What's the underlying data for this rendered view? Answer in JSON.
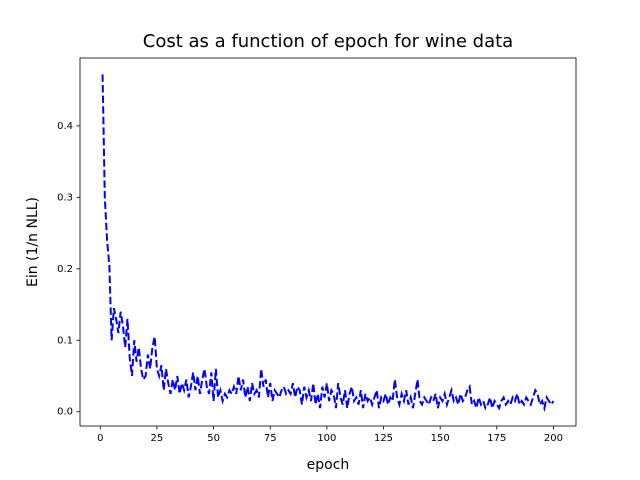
{
  "chart_data": {
    "type": "line",
    "title": "Cost as a function of epoch for wine data",
    "xlabel": "epoch",
    "ylabel": "Ein (1/n NLL)",
    "color": "#0000ff",
    "line_style": "dashed",
    "xlim": [
      -8.95,
      209.95
    ],
    "ylim": [
      -0.02,
      0.495
    ],
    "xticks": [
      0,
      25,
      50,
      75,
      100,
      125,
      150,
      175,
      200
    ],
    "yticks": [
      {
        "value": 0,
        "label": "0.0"
      },
      0.1,
      0.2,
      0.3,
      0.4
    ],
    "x": [
      1,
      2,
      3,
      4,
      5,
      6,
      7,
      8,
      9,
      10,
      11,
      12,
      13,
      14,
      15,
      16,
      17,
      18,
      19,
      20,
      21,
      22,
      23,
      24,
      25,
      26,
      27,
      28,
      29,
      30,
      31,
      32,
      33,
      34,
      35,
      36,
      37,
      38,
      39,
      40,
      41,
      42,
      43,
      44,
      45,
      46,
      47,
      48,
      49,
      50,
      51,
      52,
      53,
      54,
      55,
      56,
      57,
      58,
      59,
      60,
      61,
      62,
      63,
      64,
      65,
      66,
      67,
      68,
      69,
      70,
      71,
      72,
      73,
      74,
      75,
      76,
      77,
      78,
      79,
      80,
      81,
      82,
      83,
      84,
      85,
      86,
      87,
      88,
      89,
      90,
      91,
      92,
      93,
      94,
      95,
      96,
      97,
      98,
      99,
      100,
      101,
      102,
      103,
      104,
      105,
      106,
      107,
      108,
      109,
      110,
      111,
      112,
      113,
      114,
      115,
      116,
      117,
      118,
      119,
      120,
      121,
      122,
      123,
      124,
      125,
      126,
      127,
      128,
      129,
      130,
      131,
      132,
      133,
      134,
      135,
      136,
      137,
      138,
      139,
      140,
      141,
      142,
      143,
      144,
      145,
      146,
      147,
      148,
      149,
      150,
      151,
      152,
      153,
      154,
      155,
      156,
      157,
      158,
      159,
      160,
      161,
      162,
      163,
      164,
      165,
      166,
      167,
      168,
      169,
      170,
      171,
      172,
      173,
      174,
      175,
      176,
      177,
      178,
      179,
      180,
      181,
      182,
      183,
      184,
      185,
      186,
      187,
      188,
      189,
      190,
      191,
      192,
      193,
      194,
      195,
      196,
      197,
      198,
      199,
      200
    ],
    "values": [
      0.472,
      0.3,
      0.24,
      0.205,
      0.1,
      0.145,
      0.13,
      0.11,
      0.14,
      0.12,
      0.09,
      0.13,
      0.075,
      0.05,
      0.1,
      0.07,
      0.09,
      0.06,
      0.045,
      0.05,
      0.08,
      0.06,
      0.09,
      0.105,
      0.06,
      0.05,
      0.065,
      0.03,
      0.06,
      0.04,
      0.025,
      0.045,
      0.03,
      0.05,
      0.025,
      0.04,
      0.03,
      0.045,
      0.02,
      0.035,
      0.055,
      0.03,
      0.05,
      0.025,
      0.045,
      0.06,
      0.035,
      0.025,
      0.055,
      0.015,
      0.06,
      0.02,
      0.03,
      0.015,
      0.025,
      0.02,
      0.03,
      0.025,
      0.035,
      0.025,
      0.05,
      0.03,
      0.045,
      0.02,
      0.035,
      0.015,
      0.04,
      0.025,
      0.03,
      0.02,
      0.06,
      0.035,
      0.045,
      0.02,
      0.04,
      0.015,
      0.03,
      0.025,
      0.02,
      0.03,
      0.035,
      0.025,
      0.03,
      0.025,
      0.04,
      0.02,
      0.035,
      0.03,
      0.01,
      0.035,
      0.02,
      0.03,
      0.015,
      0.04,
      0.01,
      0.025,
      0.005,
      0.035,
      0.02,
      0.04,
      0.015,
      0.03,
      0.025,
      0.005,
      0.04,
      0.02,
      0.01,
      0.03,
      0.005,
      0.025,
      0.035,
      0.015,
      0.02,
      0.01,
      0.03,
      0.005,
      0.025,
      0.015,
      0.02,
      0.01,
      0.02,
      0.03,
      0.005,
      0.02,
      0.015,
      0.025,
      0.01,
      0.02,
      0.015,
      0.045,
      0.02,
      0.01,
      0.025,
      0.015,
      0.03,
      0.01,
      0.02,
      0.005,
      0.025,
      0.045,
      0.015,
      0.01,
      0.02,
      0.015,
      0.01,
      0.02,
      0.015,
      0.025,
      0.005,
      0.02,
      0.015,
      0.025,
      0.01,
      0.02,
      0.03,
      0.015,
      0.02,
      0.01,
      0.025,
      0.015,
      0.02,
      0.03,
      0.035,
      0.01,
      0.015,
      0.005,
      0.02,
      0.01,
      0.015,
      0.005,
      0.01,
      0.02,
      0.005,
      0.015,
      0.01,
      0.005,
      0.015,
      0.02,
      0.01,
      0.015,
      0.01,
      0.02,
      0.015,
      0.025,
      0.01,
      0.015,
      0.01,
      0.02,
      0.015,
      0.01,
      0.02,
      0.03,
      0.025,
      0.01,
      0.015,
      0.005,
      0.02,
      0.015,
      0.01,
      0.015
    ]
  }
}
